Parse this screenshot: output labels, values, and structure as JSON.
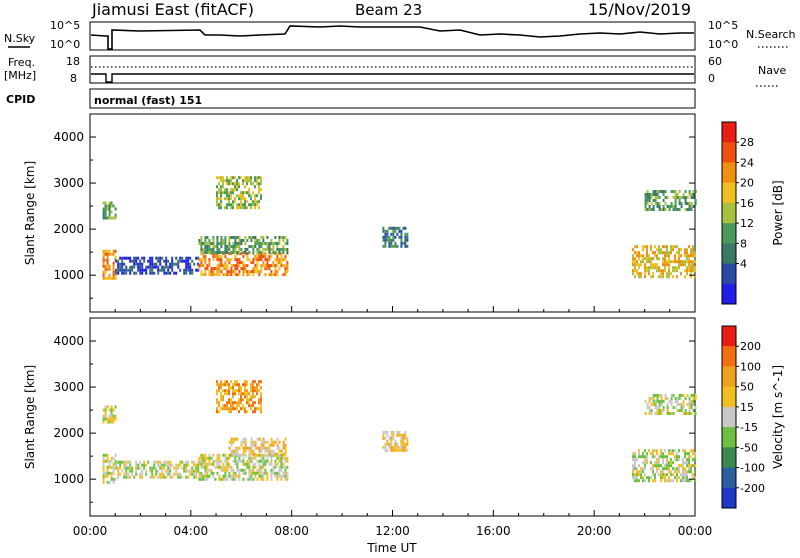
{
  "header": {
    "station": "Jiamusi East (fitACF)",
    "beam": "Beam 23",
    "date": "15/Nov/2019"
  },
  "top_panels": {
    "nsky_label": "N.Sky",
    "nsearch_label": "N.Search",
    "log_high": "10^5",
    "log_low": "10^0",
    "freq_label": "Freq.",
    "freq_unit": "[MHz]",
    "freq_high": "18",
    "freq_low": "8",
    "nave_label": "Nave",
    "nave_high": "60",
    "nave_low": "0",
    "cpid_label": "CPID",
    "cpid_value": "normal (fast) 151"
  },
  "time_axis": {
    "label": "Time UT",
    "ticks": [
      "00:00",
      "04:00",
      "08:00",
      "12:00",
      "16:00",
      "20:00",
      "00:00"
    ]
  },
  "chart_data": [
    {
      "type": "heatmap",
      "title": "",
      "ylabel": "Slant Range [km]",
      "xlabel": "Time UT",
      "x_range_hours": [
        0,
        24
      ],
      "ylim": [
        200,
        4500
      ],
      "y_ticks": [
        1000,
        2000,
        3000,
        4000
      ],
      "colorbar": {
        "label": "Power [dB]",
        "ticks": [
          "4",
          "8",
          "12",
          "16",
          "20",
          "24",
          "28"
        ],
        "colors": [
          "#1e1ee6",
          "#2a4aa8",
          "#3a7a64",
          "#4a9a5a",
          "#a8c040",
          "#f0c020",
          "#f09010",
          "#f05010",
          "#e81e14"
        ]
      },
      "echo_regions": [
        {
          "t0": 0.5,
          "t1": 1.0,
          "r0": 950,
          "r1": 1550,
          "level": 6
        },
        {
          "t0": 0.5,
          "t1": 1.0,
          "r0": 2250,
          "r1": 2600,
          "level": 3
        },
        {
          "t0": 1.0,
          "t1": 4.3,
          "r0": 1050,
          "r1": 1400,
          "level": 1
        },
        {
          "t0": 4.3,
          "t1": 7.8,
          "r0": 1000,
          "r1": 1500,
          "level": 6
        },
        {
          "t0": 4.3,
          "t1": 7.8,
          "r0": 1500,
          "r1": 1850,
          "level": 3
        },
        {
          "t0": 5.0,
          "t1": 6.8,
          "r0": 2450,
          "r1": 3150,
          "level": 4
        },
        {
          "t0": 11.6,
          "t1": 12.6,
          "r0": 1650,
          "r1": 2050,
          "level": 2
        },
        {
          "t0": 21.5,
          "t1": 24.0,
          "r0": 950,
          "r1": 1650,
          "level": 5
        },
        {
          "t0": 22.0,
          "t1": 24.0,
          "r0": 2450,
          "r1": 2850,
          "level": 3
        }
      ]
    },
    {
      "type": "heatmap",
      "title": "",
      "ylabel": "Slant Range [km]",
      "xlabel": "Time UT",
      "x_range_hours": [
        0,
        24
      ],
      "ylim": [
        200,
        4500
      ],
      "y_ticks": [
        1000,
        2000,
        3000,
        4000
      ],
      "colorbar": {
        "label": "Velocity [m s^-1]",
        "ticks": [
          "200",
          "100",
          "50",
          "15",
          "-15",
          "-50",
          "-100",
          "-200"
        ],
        "colors": [
          "#2038c8",
          "#2a60a0",
          "#3a8a50",
          "#6cc040",
          "#c8c8c8",
          "#f0c020",
          "#f0a020",
          "#f07010",
          "#e81e14"
        ]
      },
      "echo_regions": [
        {
          "t0": 0.5,
          "t1": 1.0,
          "r0": 950,
          "r1": 1550,
          "level": 4
        },
        {
          "t0": 0.5,
          "t1": 1.0,
          "r0": 2250,
          "r1": 2600,
          "level": 4
        },
        {
          "t0": 1.0,
          "t1": 4.3,
          "r0": 1050,
          "r1": 1400,
          "level": 4
        },
        {
          "t0": 4.3,
          "t1": 7.8,
          "r0": 1000,
          "r1": 1550,
          "level": 4
        },
        {
          "t0": 5.5,
          "t1": 7.8,
          "r0": 1550,
          "r1": 1900,
          "level": 5
        },
        {
          "t0": 5.0,
          "t1": 6.8,
          "r0": 2450,
          "r1": 3150,
          "level": 6
        },
        {
          "t0": 11.6,
          "t1": 12.6,
          "r0": 1650,
          "r1": 2050,
          "level": 5
        },
        {
          "t0": 21.5,
          "t1": 24.0,
          "r0": 950,
          "r1": 1650,
          "level": 4
        },
        {
          "t0": 22.0,
          "t1": 24.0,
          "r0": 2450,
          "r1": 2850,
          "level": 4
        }
      ]
    }
  ]
}
